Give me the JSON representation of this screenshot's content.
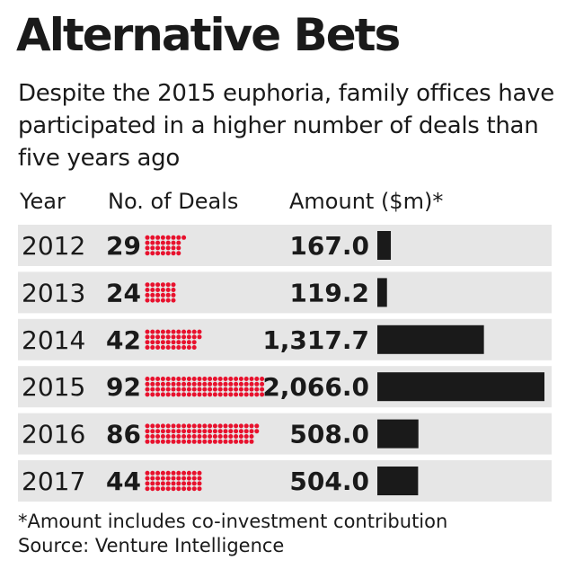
{
  "title": "Alternative Bets",
  "subtitle": "Despite the 2015 euphoria, family offices have participated in a higher number of deals than five years ago",
  "columns": {
    "year": "Year",
    "deals": "No. of Deals",
    "amount": "Amount ($m)*"
  },
  "chart_data": {
    "type": "table",
    "categories": [
      "2012",
      "2013",
      "2014",
      "2015",
      "2016",
      "2017"
    ],
    "series": [
      {
        "name": "No. of Deals",
        "values": [
          29,
          24,
          42,
          92,
          86,
          44
        ],
        "labels": [
          "29",
          "24",
          "42",
          "92",
          "86",
          "44"
        ]
      },
      {
        "name": "Amount ($m)*",
        "values": [
          167.0,
          119.2,
          1317.7,
          2066.0,
          508.0,
          504.0
        ],
        "labels": [
          "167.0",
          "119.2",
          "1,317.7",
          "2,066.0",
          "508.0",
          "504.0"
        ]
      }
    ],
    "dots_per_column": 4,
    "amount_max": 2066.0
  },
  "colors": {
    "dot": "#e8112d",
    "bar": "#1a1a1a",
    "row_background": "#e6e6e6"
  },
  "footnote": "*Amount includes co-investment contribution",
  "source": "Source: Venture Intelligence"
}
